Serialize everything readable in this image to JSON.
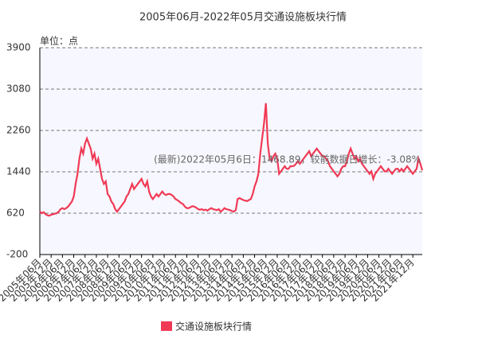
{
  "chart_data": {
    "type": "line",
    "title": "2005年06月-2022年05月交通设施板块行情",
    "y_unit": "单位：点",
    "annotation": "(最新)2022年05月6日：1468.89，较前数据日增长：-3.08%",
    "categories": [
      "2005年06月",
      null,
      null,
      null,
      null,
      null,
      "2005年12月",
      null,
      null,
      null,
      null,
      null,
      "2006年06月",
      null,
      null,
      null,
      null,
      null,
      "2006年12月",
      null,
      null,
      null,
      null,
      null,
      "2007年06月",
      null,
      null,
      null,
      null,
      null,
      "2007年12月",
      null,
      null,
      null,
      null,
      null,
      "2008年06月",
      null,
      null,
      null,
      null,
      null,
      "2008年12月",
      null,
      null,
      null,
      null,
      null,
      "2009年06月",
      null,
      null,
      null,
      null,
      null,
      "2009年12月",
      null,
      null,
      null,
      null,
      null,
      "2010年06月",
      null,
      null,
      null,
      null,
      null,
      "2010年12月",
      null,
      null,
      null,
      null,
      null,
      "2011年06月",
      null,
      null,
      null,
      null,
      null,
      "2011年12月",
      null,
      null,
      null,
      null,
      null,
      "2012年06月",
      null,
      null,
      null,
      null,
      null,
      "2012年12月",
      null,
      null,
      null,
      null,
      null,
      "2013年06月",
      null,
      null,
      null,
      null,
      null,
      "2013年12月",
      null,
      null,
      null,
      null,
      null,
      "2014年06月",
      null,
      null,
      null,
      null,
      null,
      "2014年12月",
      null,
      null,
      null,
      null,
      null,
      "2015年06月",
      null,
      null,
      null,
      null,
      null,
      "2015年12月",
      null,
      null,
      null,
      null,
      null,
      "2016年06月",
      null,
      null,
      null,
      null,
      null,
      "2016年12月",
      null,
      null,
      null,
      null,
      null,
      "2017年06月",
      null,
      null,
      null,
      null,
      null,
      "2017年12月",
      null,
      null,
      null,
      null,
      null,
      "2018年06月",
      null,
      null,
      null,
      null,
      null,
      "2018年12月",
      null,
      null,
      null,
      null,
      null,
      "2019年06月",
      null,
      null,
      null,
      null,
      null,
      "2019年12月",
      null,
      null,
      null,
      null,
      null,
      "2020年06月",
      null,
      null,
      null,
      null,
      null,
      "2020年12月",
      null,
      null,
      null,
      null,
      null,
      "2021年06月",
      null,
      null,
      null,
      null,
      null,
      "2021年12月",
      null,
      null,
      null,
      null,
      null
    ],
    "series": [
      {
        "name": "交通设施板块行情",
        "color": "#f03a55",
        "values": [
          650,
          620,
          640,
          600,
          580,
          570,
          590,
          600,
          610,
          620,
          650,
          700,
          720,
          700,
          720,
          750,
          800,
          850,
          950,
          1200,
          1400,
          1700,
          1900,
          1800,
          2000,
          2100,
          2000,
          1900,
          1700,
          1800,
          1600,
          1700,
          1500,
          1300,
          1200,
          1250,
          1000,
          950,
          850,
          800,
          700,
          650,
          700,
          750,
          800,
          850,
          950,
          1000,
          1100,
          1200,
          1100,
          1150,
          1200,
          1250,
          1300,
          1200,
          1150,
          1250,
          1050,
          950,
          900,
          950,
          1000,
          950,
          1000,
          1050,
          1000,
          980,
          1000,
          1000,
          980,
          950,
          900,
          880,
          850,
          820,
          800,
          750,
          720,
          720,
          740,
          760,
          750,
          730,
          700,
          690,
          700,
          680,
          690,
          670,
          700,
          720,
          700,
          690,
          680,
          700,
          650,
          680,
          720,
          700,
          690,
          680,
          660,
          650,
          680,
          900,
          920,
          900,
          880,
          870,
          860,
          880,
          900,
          1000,
          1150,
          1250,
          1400,
          1800,
          2100,
          2400,
          2800,
          2000,
          1700,
          1650,
          1750,
          1800,
          1700,
          1400,
          1450,
          1500,
          1550,
          1500,
          1500,
          1550,
          1550,
          1560,
          1600,
          1650,
          1600,
          1650,
          1700,
          1750,
          1800,
          1850,
          1750,
          1800,
          1850,
          1900,
          1850,
          1800,
          1750,
          1750,
          1700,
          1650,
          1550,
          1500,
          1450,
          1400,
          1350,
          1400,
          1500,
          1550,
          1550,
          1650,
          1800,
          1900,
          1800,
          1700,
          1750,
          1650,
          1700,
          1600,
          1550,
          1500,
          1450,
          1400,
          1450,
          1300,
          1400,
          1450,
          1500,
          1550,
          1500,
          1450,
          1450,
          1500,
          1450,
          1400,
          1450,
          1500,
          1500,
          1450,
          1500,
          1450,
          1500,
          1550,
          1500,
          1450,
          1400,
          1450,
          1500,
          1700,
          1600,
          1468.89
        ]
      }
    ],
    "ylim": [
      -200,
      3900
    ],
    "yticks": [
      -200,
      620,
      1440,
      2260,
      3080,
      3900
    ],
    "grid": true,
    "legend": "bottom"
  }
}
